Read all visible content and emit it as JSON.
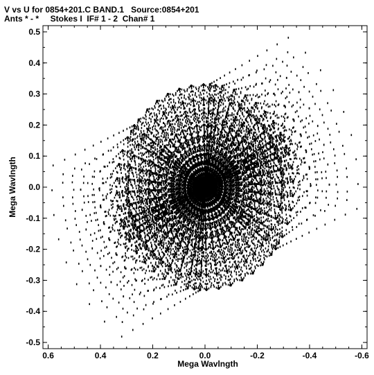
{
  "header": {
    "title_line1": "V vs U for 0854+201.C BAND.1   Source:0854+201",
    "title_line2": "Ants * - *     Stokes I  IF# 1 - 2  Chan# 1"
  },
  "chart_data": {
    "type": "scatter",
    "title": "V vs U for 0854+201.C BAND.1   Source:0854+201",
    "subtitle": "Ants * - *     Stokes I  IF# 1 - 2  Chan# 1",
    "xlabel": "Mega Wavlngth",
    "ylabel": "Mega Wavlngth",
    "xlim": [
      0.62,
      -0.62
    ],
    "ylim": [
      -0.52,
      0.52
    ],
    "x_reversed": true,
    "x_ticks": [
      0.6,
      0.4,
      0.2,
      0.0,
      -0.2,
      -0.4,
      -0.6
    ],
    "x_tick_labels": [
      "0.6",
      "0.4",
      "0.2",
      "0.0",
      "-0.2",
      "-0.4",
      "-0.6"
    ],
    "y_ticks": [
      0.5,
      0.4,
      0.3,
      0.2,
      0.1,
      0.0,
      -0.1,
      -0.2,
      -0.3,
      -0.4,
      -0.5
    ],
    "y_tick_labels": [
      "0.5",
      "0.4",
      "0.3",
      "0.2",
      "0.1",
      "0.0",
      "-0.1",
      "-0.2",
      "-0.3",
      "-0.4",
      "-0.5"
    ],
    "grid": false,
    "pattern": "snapshot uv-coverage, six-armed array, each baseline traced as short radial arcs with conjugate symmetry",
    "arms": {
      "angles_deg": [
        5,
        65,
        125
      ],
      "station_radii": [
        0.0,
        0.004,
        0.01,
        0.019,
        0.031,
        0.046,
        0.064,
        0.086,
        0.111,
        0.139,
        0.171,
        0.206,
        0.246,
        0.29,
        0.338
      ]
    },
    "hour_angle_deg": [
      -32,
      32
    ],
    "samples_per_track": 9
  }
}
